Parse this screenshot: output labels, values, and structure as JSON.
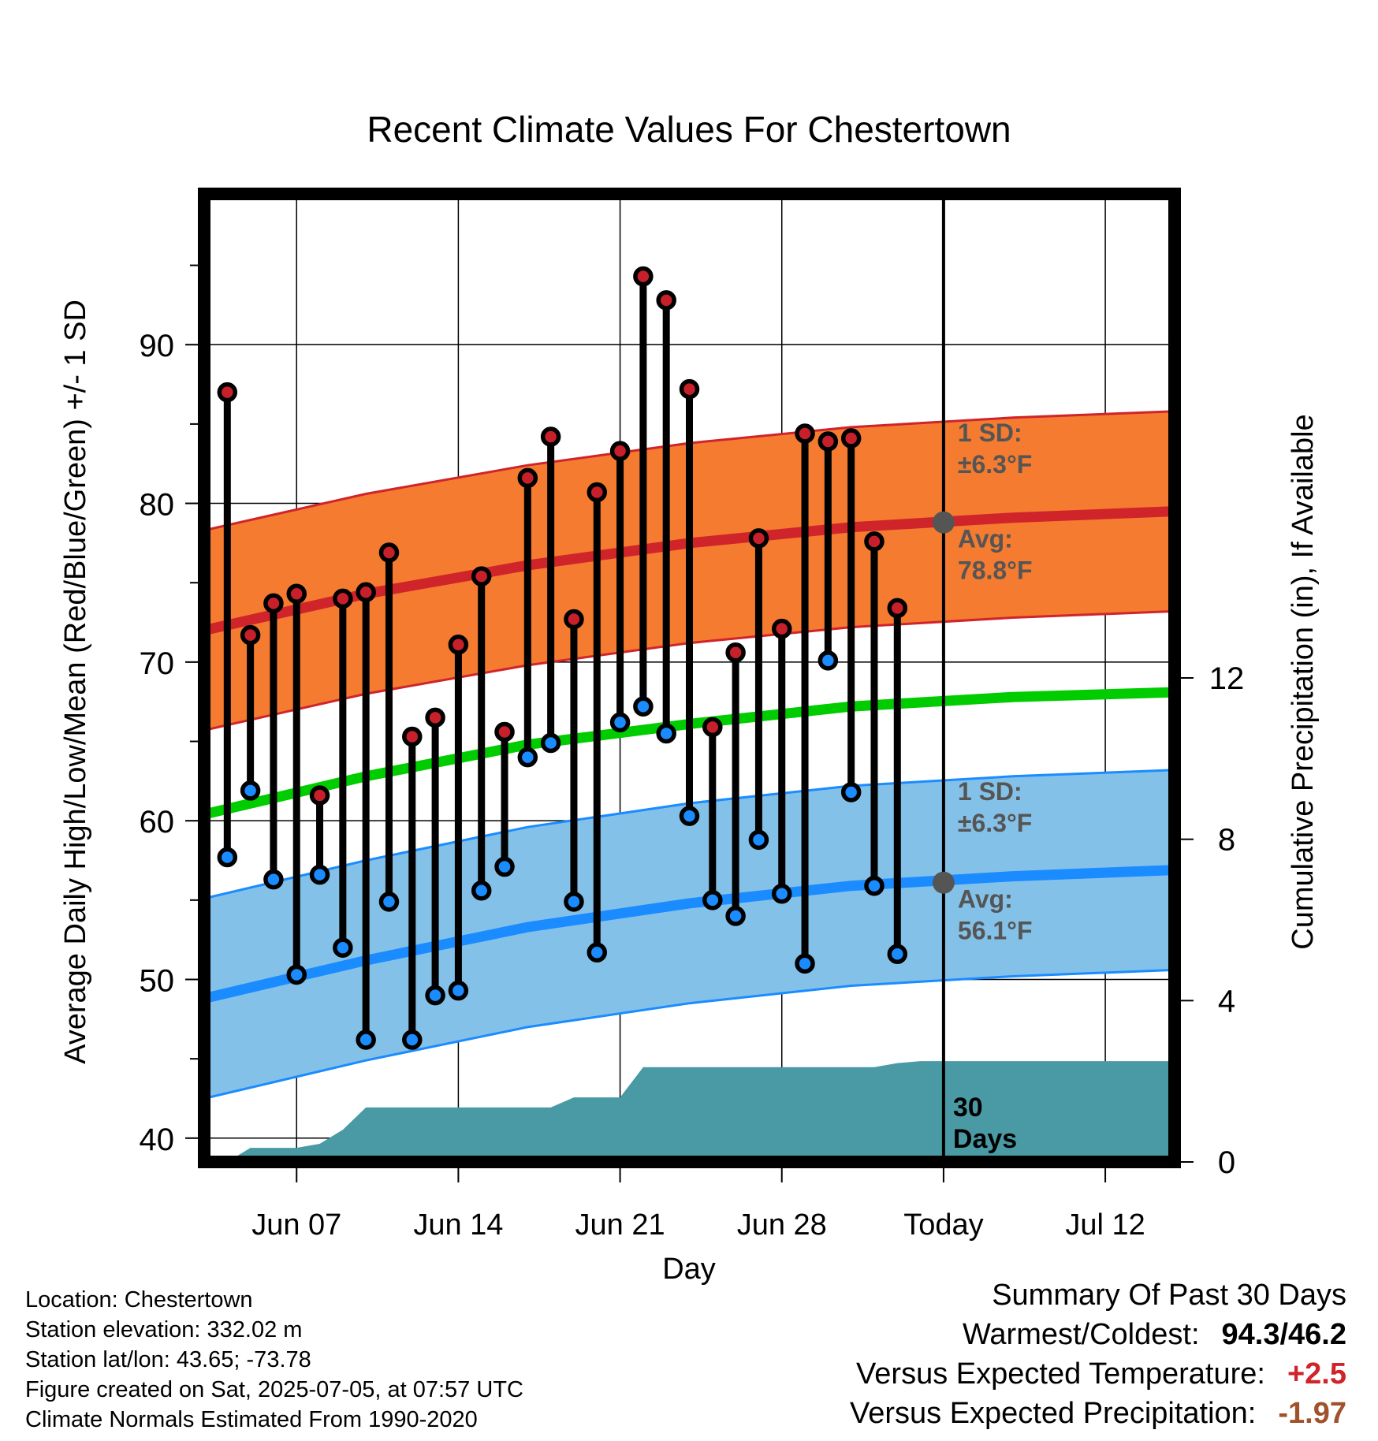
{
  "chart_data": {
    "type": "line",
    "title": "Recent Climate Values For Chestertown",
    "xlabel": "Day",
    "ylabel_left": "Average Daily High/Low/Mean (Red/Blue/Green) +/- 1 SD",
    "ylabel_right": "Cumulative Precipitation (in), If Available",
    "x_start": "Jun 03",
    "x_end": "Jul 15",
    "today": "Jul 05",
    "x_ticks": [
      {
        "date": "Jun 07",
        "label": "Jun 07"
      },
      {
        "date": "Jun 14",
        "label": "Jun 14"
      },
      {
        "date": "Jun 21",
        "label": "Jun 21"
      },
      {
        "date": "Jun 28",
        "label": "Jun 28"
      },
      {
        "date": "Jul 05",
        "label": "Today"
      },
      {
        "date": "Jul 12",
        "label": "Jul 12"
      }
    ],
    "ylim": [
      38.5,
      99.5
    ],
    "y_ticks": [
      40,
      50,
      60,
      70,
      80,
      90
    ],
    "y2lim": [
      0,
      24.0
    ],
    "y2_ticks": [
      0,
      4,
      8,
      12
    ],
    "grid": true,
    "normals_dates": [
      "Jun 03",
      "Jun 10",
      "Jun 17",
      "Jun 24",
      "Jul 01",
      "Jul 08",
      "Jul 15"
    ],
    "normal_high": [
      72.0,
      74.3,
      76.1,
      77.5,
      78.5,
      79.1,
      79.5
    ],
    "normal_low": [
      48.8,
      51.2,
      53.3,
      54.8,
      55.9,
      56.5,
      56.9
    ],
    "normal_mean": [
      60.4,
      62.8,
      64.8,
      66.1,
      67.2,
      67.8,
      68.1
    ],
    "sd": 6.3,
    "high_sd_label": [
      "1 SD:",
      "±6.3°F"
    ],
    "high_avg_label": [
      "Avg:",
      "78.8°F"
    ],
    "low_sd_label": [
      "1 SD:",
      "±6.3°F"
    ],
    "low_avg_label": [
      "Avg:",
      "56.1°F"
    ],
    "today_high_avg": 78.8,
    "today_low_avg": 56.1,
    "days_label": [
      "30",
      "Days"
    ],
    "series": [
      {
        "dates": [
          "Jun 04",
          "Jun 05",
          "Jun 06",
          "Jun 07",
          "Jun 08",
          "Jun 09",
          "Jun 10",
          "Jun 11",
          "Jun 12",
          "Jun 13",
          "Jun 14",
          "Jun 15",
          "Jun 16",
          "Jun 17",
          "Jun 18",
          "Jun 19",
          "Jun 20",
          "Jun 21",
          "Jun 22",
          "Jun 23",
          "Jun 24",
          "Jun 25",
          "Jun 26",
          "Jun 27",
          "Jun 28",
          "Jun 29",
          "Jun 30",
          "Jul 01",
          "Jul 02",
          "Jul 03",
          "Jul 04"
        ],
        "high": [
          87.0,
          71.7,
          73.7,
          74.3,
          61.6,
          74.0,
          74.4,
          76.9,
          65.3,
          66.5,
          71.1,
          75.4,
          65.6,
          81.6,
          84.2,
          72.7,
          80.7,
          83.3,
          94.3,
          92.8,
          87.2,
          65.9,
          70.6,
          77.8,
          72.1,
          84.4,
          83.9,
          84.1,
          77.6,
          73.4,
          null
        ],
        "low": [
          57.7,
          61.9,
          56.3,
          50.3,
          56.6,
          52.0,
          46.2,
          54.9,
          46.2,
          49.0,
          49.3,
          55.6,
          57.1,
          64.0,
          64.9,
          54.9,
          51.7,
          66.2,
          67.2,
          65.5,
          60.3,
          55.0,
          54.0,
          58.8,
          55.4,
          51.0,
          70.1,
          61.8,
          55.9,
          51.6,
          null
        ]
      }
    ],
    "precip": {
      "dates": [
        "Jun 03",
        "Jun 04",
        "Jun 05",
        "Jun 06",
        "Jun 07",
        "Jun 08",
        "Jun 09",
        "Jun 10",
        "Jun 11",
        "Jun 12",
        "Jun 13",
        "Jun 14",
        "Jun 15",
        "Jun 16",
        "Jun 17",
        "Jun 18",
        "Jun 19",
        "Jun 20",
        "Jun 21",
        "Jun 22",
        "Jun 23",
        "Jun 24",
        "Jun 25",
        "Jun 26",
        "Jun 27",
        "Jun 28",
        "Jun 29",
        "Jun 30",
        "Jul 01",
        "Jul 02",
        "Jul 03",
        "Jul 04",
        "Jul 05"
      ],
      "cumulative": [
        0,
        0,
        0.35,
        0.35,
        0.35,
        0.45,
        0.8,
        1.35,
        1.35,
        1.35,
        1.35,
        1.35,
        1.35,
        1.35,
        1.35,
        1.35,
        1.6,
        1.6,
        1.6,
        2.35,
        2.35,
        2.35,
        2.35,
        2.35,
        2.35,
        2.35,
        2.35,
        2.35,
        2.35,
        2.35,
        2.45,
        2.5,
        2.5
      ]
    },
    "colors": {
      "high_band": "#f47b2f",
      "high_line": "#d0242b",
      "low_band": "#84c1e8",
      "low_line": "#1a8cff",
      "mean_line": "#00cc00",
      "precip": "#4a9aa5",
      "high_marker": "#c8202a",
      "low_marker": "#1a8cff",
      "avg_text": "#555555",
      "avg_dot": "#555555"
    }
  },
  "footer": {
    "location": "Location: Chestertown",
    "elevation": "Station elevation: 332.02 m",
    "latlon": "Station lat/lon: 43.65; -73.78",
    "created": "Figure created on Sat, 2025-07-05, at 07:57 UTC",
    "normals": "Climate Normals Estimated From 1990-2020"
  },
  "summary": {
    "title": "Summary Of Past 30 Days",
    "warmest_label": "Warmest/Coldest:",
    "warmest_value": "94.3/46.2",
    "temp_label": "Versus Expected Temperature:",
    "temp_value": "+2.5",
    "temp_color": "#d0242b",
    "precip_label": "Versus Expected Precipitation:",
    "precip_value": "-1.97",
    "precip_color": "#a0522d"
  }
}
